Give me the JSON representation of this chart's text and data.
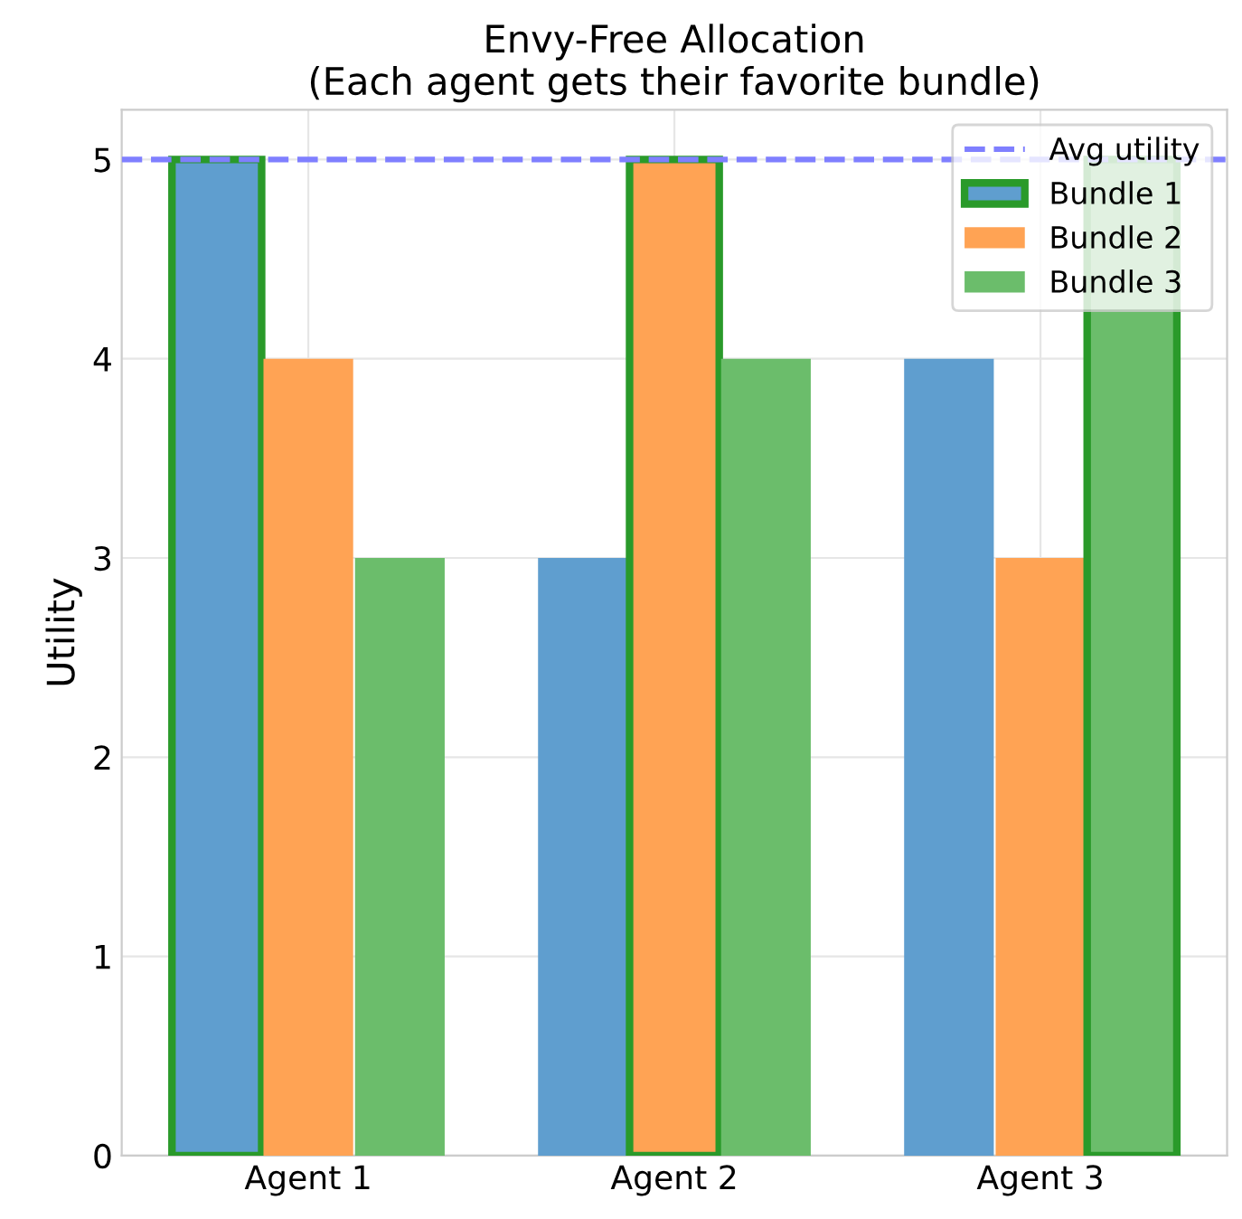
{
  "chart_data": {
    "type": "bar",
    "title": "Envy-Free Allocation\n(Each agent gets their favorite bundle)",
    "ylabel": "Utility",
    "categories": [
      "Agent 1",
      "Agent 2",
      "Agent 3"
    ],
    "series": [
      {
        "name": "Bundle 1",
        "color": "#5f9ecf",
        "values": [
          5,
          3,
          4
        ]
      },
      {
        "name": "Bundle 2",
        "color": "#ffa354",
        "values": [
          4,
          5,
          3
        ]
      },
      {
        "name": "Bundle 3",
        "color": "#6bbd6b",
        "values": [
          3,
          4,
          5
        ]
      }
    ],
    "ylim": [
      0,
      5.25
    ],
    "yticks": [
      0,
      1,
      2,
      3,
      4,
      5
    ],
    "ref_lines": [
      {
        "axis": "y",
        "value": 5,
        "label": "Avg utility",
        "color": "#7f7fff",
        "line_style": "dashed"
      }
    ],
    "grid": true,
    "legend": "top right"
  }
}
